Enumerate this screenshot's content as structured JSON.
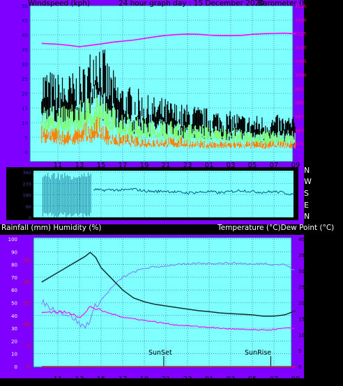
{
  "header": {
    "left": "Windspeed (kph)",
    "center": "24 hour graph day : 15 December 2020",
    "right": "Barometer (hpa)"
  },
  "compass": [
    "N",
    "W",
    "S",
    "E",
    "N"
  ],
  "lower_header": {
    "left": "Rainfall (mm)  Humidity (%)",
    "right": "Temperature (°C)Dew Point (°C)"
  },
  "markers": {
    "sunset": "SunSet",
    "sunrise": "SunRise"
  },
  "colors": {
    "purple": "#8000ff",
    "plot": "#80ffff",
    "axis_blue": "#0000a0",
    "axis_magenta": "#ff0080",
    "wind_gust": "#000000",
    "wind_avg": "#80ff80",
    "wind_min": "#ff8000",
    "pressure": "#ff00ff",
    "direction": "#005b80",
    "temperature": "#103030",
    "dewpoint": "#ff00ff",
    "humidity": "#8080ff",
    "rain": "#ff0000"
  },
  "chart_data": [
    {
      "type": "line",
      "title": "24 hour graph day : 15 December 2020",
      "ylabel": "Windspeed (kph)",
      "y2label": "Barometer (hpa)",
      "x_ticks": [
        "11",
        "13",
        "15",
        "17",
        "19",
        "21",
        "23",
        "01",
        "03",
        "05",
        "07",
        "09"
      ],
      "ylim": [
        0,
        50
      ],
      "yticks": [
        0,
        5,
        10,
        15,
        20,
        25,
        30,
        35,
        40,
        45,
        50
      ],
      "y2lim": [
        972,
        1025
      ],
      "y2ticks": [
        975,
        980,
        985,
        990,
        995,
        1000,
        1005,
        1010,
        1015,
        1020,
        1025
      ],
      "series": [
        {
          "name": "Gust",
          "x": [
            9.5,
            10.5,
            11.5,
            12.5,
            13.5,
            14.2,
            14.6,
            15.5,
            16.5,
            17.5,
            18.5,
            19.5,
            20.5,
            21.5,
            22.5,
            23.5,
            24.5,
            25.5,
            26.5,
            27.5,
            28.5,
            29.5,
            30.5,
            31.5,
            32.5,
            33.0
          ],
          "values": [
            24,
            22,
            21,
            22,
            24,
            30,
            35,
            26,
            20,
            18,
            17,
            15,
            15,
            14,
            13,
            13,
            12,
            12,
            11,
            11,
            10,
            10,
            10,
            10,
            10,
            9
          ]
        },
        {
          "name": "Average",
          "x": [
            9.5,
            10.5,
            11.5,
            12.5,
            13.5,
            14.2,
            14.6,
            15.5,
            16.5,
            17.5,
            18.5,
            19.5,
            20.5,
            21.5,
            22.5,
            23.5,
            24.5,
            25.5,
            26.5,
            27.5,
            28.5,
            29.5,
            30.5,
            31.5,
            32.5,
            33.0
          ],
          "values": [
            14,
            13,
            13,
            14,
            15,
            17,
            18,
            14,
            12,
            11,
            10,
            9,
            9,
            9,
            8,
            8,
            8,
            7,
            7,
            7,
            6,
            6,
            6,
            6,
            6,
            6
          ]
        },
        {
          "name": "Minimum",
          "x": [
            9.5,
            10.5,
            11.5,
            12.5,
            13.5,
            14.2,
            14.6,
            15.5,
            16.5,
            17.5,
            18.5,
            19.5,
            20.5,
            21.5,
            22.5,
            23.5,
            24.5,
            25.5,
            26.5,
            27.5,
            28.5,
            29.5,
            30.5,
            31.5,
            32.5,
            33.0
          ],
          "values": [
            7,
            7,
            6,
            6,
            8,
            9,
            10,
            7,
            5,
            5,
            4,
            4,
            4,
            4,
            4,
            3,
            3,
            3,
            3,
            3,
            3,
            3,
            3,
            3,
            3,
            3
          ]
        },
        {
          "name": "Barometer",
          "axis": "right",
          "x": [
            9.5,
            11,
            12,
            13,
            14,
            15,
            16,
            17,
            18,
            19,
            20,
            21,
            22,
            23,
            24,
            25,
            26,
            27,
            28,
            29,
            30,
            31,
            32,
            33
          ],
          "values": [
            1011.3,
            1011.0,
            1010.6,
            1010.1,
            1010.6,
            1011.1,
            1011.7,
            1012.1,
            1012.5,
            1013.1,
            1013.7,
            1014.2,
            1014.5,
            1014.7,
            1014.6,
            1014.3,
            1014.1,
            1014.1,
            1014.2,
            1014.6,
            1014.8,
            1014.9,
            1015.0,
            1014.8
          ]
        }
      ]
    },
    {
      "type": "line",
      "ylabel": "Wind direction",
      "ylim": [
        0,
        360
      ],
      "yticks": [
        0,
        90,
        180,
        270,
        360
      ],
      "series": [
        {
          "name": "Direction",
          "x": [
            9.5,
            10,
            10.5,
            11,
            11.5,
            12,
            12.5,
            13,
            13.5,
            14,
            14.5,
            15,
            16,
            17,
            18,
            19,
            20,
            21,
            22,
            23,
            24,
            25,
            26,
            27,
            28,
            29,
            30,
            31,
            32,
            33
          ],
          "values": [
            340,
            340,
            30,
            330,
            40,
            340,
            20,
            345,
            30,
            225,
            220,
            215,
            220,
            215,
            225,
            210,
            205,
            210,
            200,
            195,
            200,
            205,
            195,
            205,
            215,
            205,
            200,
            205,
            195,
            180
          ]
        }
      ]
    },
    {
      "type": "line",
      "ylabel": "Rainfall (mm)  Humidity (%)",
      "y2label": "Temperature (°C)Dew Point (°C)",
      "x_ticks": [
        "11",
        "13",
        "15",
        "17",
        "19",
        "21",
        "23",
        "01",
        "03",
        "05",
        "07",
        "09"
      ],
      "ylim": [
        0,
        100
      ],
      "yticks": [
        0,
        10,
        20,
        30,
        40,
        50,
        60,
        70,
        80,
        90,
        100
      ],
      "rain_ticks": [
        0,
        5,
        10,
        15,
        20,
        25
      ],
      "y2lim": [
        0,
        40
      ],
      "y2ticks": [
        0,
        5,
        10,
        15,
        20,
        25,
        30,
        35,
        40
      ],
      "annotations": [
        {
          "label": "SunSet",
          "x": 20.8
        },
        {
          "label": "SunRise",
          "x": 30.7
        }
      ],
      "series": [
        {
          "name": "Temperature",
          "axis": "right",
          "x": [
            9.5,
            10.5,
            11.5,
            12.5,
            13.5,
            14,
            14.5,
            15,
            16,
            17,
            18,
            19,
            20,
            21,
            22,
            23,
            24,
            25,
            26,
            27,
            28,
            29,
            30,
            31,
            32,
            33
          ],
          "values": [
            26.5,
            28.5,
            30.5,
            32.5,
            34.5,
            35.8,
            34.2,
            31,
            27.5,
            24,
            21.5,
            20.3,
            19.5,
            19,
            18.5,
            18,
            17.5,
            17.2,
            16.8,
            16.6,
            16.4,
            16.2,
            15.8,
            15.8,
            16.2,
            17.5
          ]
        },
        {
          "name": "Dew Point",
          "axis": "right",
          "x": [
            9.5,
            10.5,
            11.5,
            12.5,
            13,
            13.5,
            14,
            14.5,
            15,
            16,
            17,
            18,
            19,
            20,
            21,
            22,
            23,
            24,
            25,
            26,
            27,
            28,
            29,
            30,
            31,
            32,
            33
          ],
          "values": [
            16.8,
            17.3,
            17.0,
            16.5,
            15.5,
            16.5,
            19.0,
            18.0,
            17.5,
            16.5,
            15.5,
            15.0,
            14.5,
            14.0,
            13.5,
            13.0,
            12.8,
            12.5,
            12.3,
            12.0,
            11.8,
            11.6,
            11.5,
            11.4,
            11.6,
            12.0,
            12.0
          ]
        },
        {
          "name": "Humidity",
          "x": [
            9.5,
            10.5,
            11.5,
            12.5,
            13,
            13.5,
            14,
            14.5,
            15,
            16,
            17,
            18,
            19,
            20,
            21,
            22,
            23,
            24,
            25,
            26,
            27,
            28,
            29,
            30,
            31,
            32,
            33
          ],
          "values": [
            51,
            45,
            42,
            38,
            33,
            31,
            37,
            48,
            52,
            62,
            70,
            74,
            77,
            78,
            79,
            80,
            80,
            81,
            81,
            81,
            81,
            81,
            80,
            81,
            80,
            80,
            75
          ]
        },
        {
          "name": "Rainfall",
          "axis": "rain",
          "x": [
            9.5,
            33
          ],
          "values": [
            0,
            0
          ]
        }
      ]
    }
  ]
}
